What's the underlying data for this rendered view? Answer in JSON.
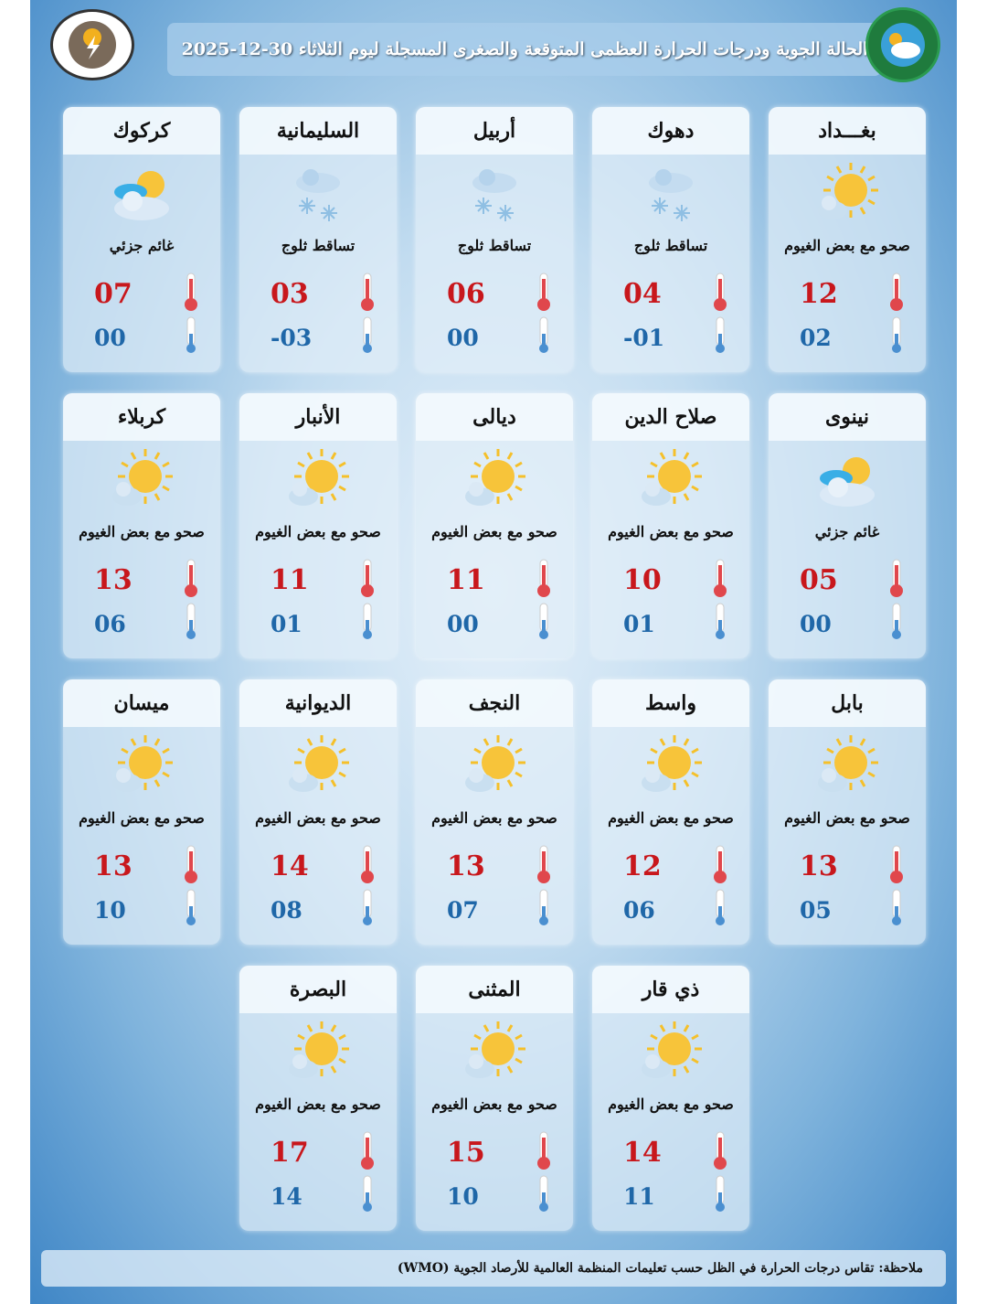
{
  "header": {
    "title": "الحالة الجوية ودرجات الحرارة العظمى المتوقعة والصغرى المسجلة ليوم الثلاثاء 30-12-2025"
  },
  "logos": {
    "left": "WEATHER FORECASTING DEPT. قسم التنبؤ الجوي",
    "right": "الهيئة العامة للأنواء الجوية والرصد الزلزالي"
  },
  "colors": {
    "max": "#c8171c",
    "min": "#1f67a8"
  },
  "cities": [
    {
      "name": "بغـــداد",
      "condition": "صحو مع بعض الغيوم",
      "icon": "sun-cloud",
      "max": "12",
      "min": "02"
    },
    {
      "name": "دهوك",
      "condition": "تساقط ثلوج",
      "icon": "snow",
      "max": "04",
      "min": "-01"
    },
    {
      "name": "أربيل",
      "condition": "تساقط ثلوج",
      "icon": "snow",
      "max": "06",
      "min": "00"
    },
    {
      "name": "السليمانية",
      "condition": "تساقط ثلوج",
      "icon": "snow",
      "max": "03",
      "min": "-03"
    },
    {
      "name": "كركوك",
      "condition": "غائم جزئي",
      "icon": "partly-cloudy",
      "max": "07",
      "min": "00"
    },
    {
      "name": "نينوى",
      "condition": "غائم جزئي",
      "icon": "partly-cloudy",
      "max": "05",
      "min": "00"
    },
    {
      "name": "صلاح الدين",
      "condition": "صحو مع بعض الغيوم",
      "icon": "sun-cloud",
      "max": "10",
      "min": "01"
    },
    {
      "name": "ديالى",
      "condition": "صحو مع بعض الغيوم",
      "icon": "sun-cloud",
      "max": "11",
      "min": "00"
    },
    {
      "name": "الأنبار",
      "condition": "صحو مع بعض الغيوم",
      "icon": "sun-cloud",
      "max": "11",
      "min": "01"
    },
    {
      "name": "كربلاء",
      "condition": "صحو مع بعض الغيوم",
      "icon": "sun-cloud",
      "max": "13",
      "min": "06"
    },
    {
      "name": "بابل",
      "condition": "صحو مع بعض الغيوم",
      "icon": "sun-cloud",
      "max": "13",
      "min": "05"
    },
    {
      "name": "واسط",
      "condition": "صحو مع بعض الغيوم",
      "icon": "sun-cloud",
      "max": "12",
      "min": "06"
    },
    {
      "name": "النجف",
      "condition": "صحو مع بعض الغيوم",
      "icon": "sun-cloud",
      "max": "13",
      "min": "07"
    },
    {
      "name": "الديوانية",
      "condition": "صحو مع بعض الغيوم",
      "icon": "sun-cloud",
      "max": "14",
      "min": "08"
    },
    {
      "name": "ميسان",
      "condition": "صحو مع بعض الغيوم",
      "icon": "sun-cloud",
      "max": "13",
      "min": "10"
    },
    {
      "name": "ذي قار",
      "condition": "صحو مع بعض الغيوم",
      "icon": "sun-cloud",
      "max": "14",
      "min": "11"
    },
    {
      "name": "المثنى",
      "condition": "صحو مع بعض الغيوم",
      "icon": "sun-cloud",
      "max": "15",
      "min": "10"
    },
    {
      "name": "البصرة",
      "condition": "صحو مع بعض الغيوم",
      "icon": "sun-cloud",
      "max": "17",
      "min": "14"
    }
  ],
  "note": "ملاحظة: تقاس درجات الحرارة في الظل حسب تعليمات المنظمة العالمية للأرصاد الجوية (WMO)"
}
